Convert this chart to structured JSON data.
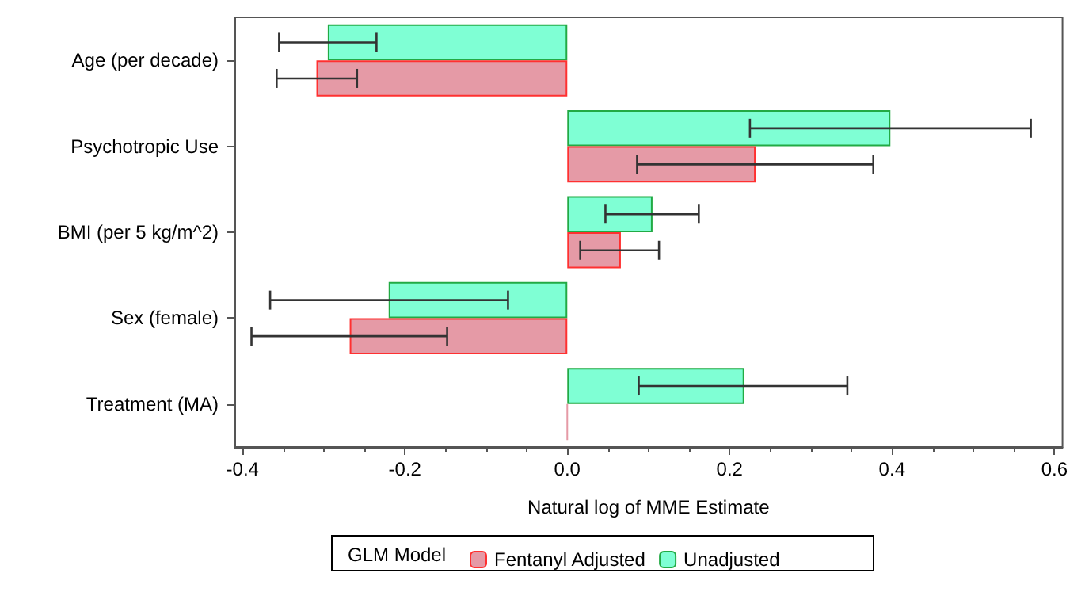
{
  "chart_data": {
    "type": "bar",
    "orientation": "horizontal",
    "xlabel": "Natural log of MME Estimate",
    "legend_title": "GLM Model",
    "categories": [
      "Age (per decade)",
      "Psychotropic Use",
      "BMI (per 5 kg/m^2)",
      "Sex (female)",
      "Treatment (MA)"
    ],
    "series": [
      {
        "name": "Fentanyl Adjusted",
        "color": "#e59aa6",
        "values": [
          -0.309,
          0.232,
          0.066,
          -0.268,
          0.0
        ],
        "errors": [
          [
            -0.358,
            -0.259
          ],
          [
            0.086,
            0.377
          ],
          [
            0.016,
            0.113
          ],
          [
            -0.389,
            -0.148
          ],
          null
        ]
      },
      {
        "name": "Unadjusted",
        "color": "#7fffd4",
        "values": [
          -0.295,
          0.398,
          0.105,
          -0.22,
          0.218
        ],
        "errors": [
          [
            -0.355,
            -0.235
          ],
          [
            0.225,
            0.571
          ],
          [
            0.047,
            0.162
          ],
          [
            -0.366,
            -0.073
          ],
          [
            0.088,
            0.345
          ]
        ]
      }
    ],
    "xlim": [
      -0.41,
      0.61
    ],
    "xticks": [
      -0.4,
      -0.2,
      {
        "value": 0,
        "label": "0.0"
      },
      0.2,
      0.4,
      0.6
    ],
    "grid": false,
    "legend": "bottom"
  }
}
